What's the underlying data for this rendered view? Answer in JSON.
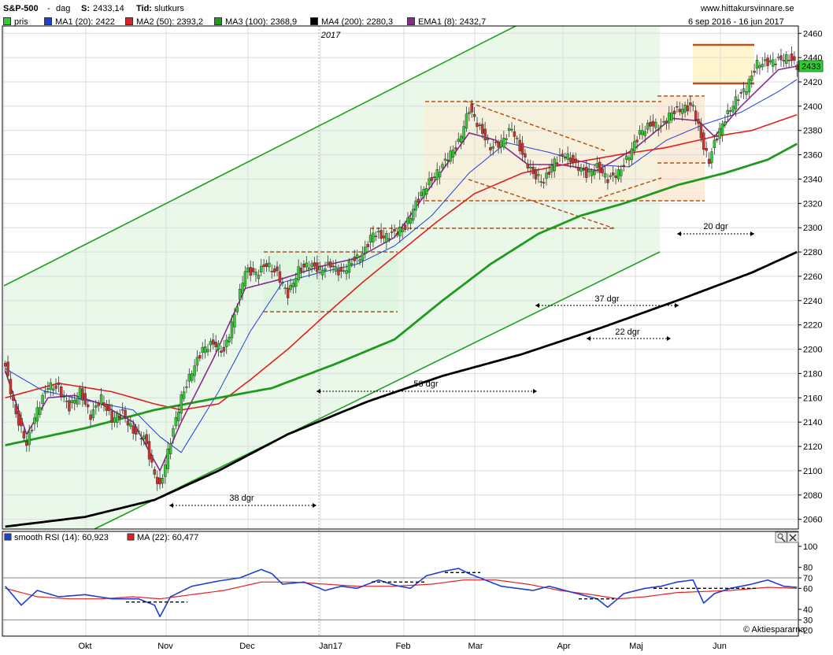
{
  "header": {
    "symbol": "S&P-500",
    "sep": "-",
    "period": "dag",
    "last_label": "S:",
    "last_value": "2433,14",
    "type_label": "Tid:",
    "type_value": "slutkurs",
    "website": "www.hittakursvinnare.se",
    "date_range": "6 sep 2016 - 16 jun 2017"
  },
  "legend": [
    {
      "label": "pris",
      "color": "#33cc33"
    },
    {
      "label": "MA1 (20): 2422",
      "color": "#1f3fd6"
    },
    {
      "label": "MA2 (50): 2393,2",
      "color": "#e02020"
    },
    {
      "label": "MA3 (100): 2368,9",
      "color": "#1f9a1f"
    },
    {
      "label": "MA4 (200): 2280,3",
      "color": "#000000"
    },
    {
      "label": "EMA1 (8): 2432,7",
      "color": "#8a2a8a"
    }
  ],
  "year_label": "2017",
  "price_tag": "2433",
  "annotations": [
    {
      "text": "38 dgr"
    },
    {
      "text": "58 dgr"
    },
    {
      "text": "37 dgr"
    },
    {
      "text": "22 dgr"
    },
    {
      "text": "20 dgr"
    }
  ],
  "rsi_legend": [
    {
      "label": "smooth RSI (14): 60,923",
      "color": "#1f3fd6"
    },
    {
      "label": "MA (22): 60,477",
      "color": "#e02020"
    }
  ],
  "copyright": "© Aktiespararna",
  "icons": [
    "magnifier-icon",
    "close-icon"
  ],
  "chart_data": [
    {
      "type": "candlestick",
      "ylim": [
        2052,
        2466
      ],
      "yticks": [
        2060,
        2080,
        2100,
        2120,
        2140,
        2160,
        2180,
        2200,
        2220,
        2240,
        2260,
        2280,
        2300,
        2320,
        2340,
        2360,
        2380,
        2400,
        2420,
        2440,
        2460
      ],
      "ytick_labels": [
        "2060",
        "2080",
        "2100",
        "2120",
        "2140",
        "2160",
        "2180",
        "2200",
        "2220",
        "2240",
        "2260",
        "2280",
        "2300",
        "2320",
        "2340",
        "2360",
        "2380",
        "2400",
        "2420",
        "2440",
        "2460"
      ],
      "xtick_labels": [
        "Okt",
        "Nov",
        "Dec",
        "Jan17",
        "Feb",
        "Mar",
        "Apr",
        "Maj",
        "Jun"
      ],
      "close_keypoints": [
        [
          0,
          2186
        ],
        [
          4,
          2146
        ],
        [
          8,
          2122
        ],
        [
          12,
          2150
        ],
        [
          16,
          2170
        ],
        [
          20,
          2168
        ],
        [
          24,
          2152
        ],
        [
          28,
          2165
        ],
        [
          32,
          2145
        ],
        [
          36,
          2160
        ],
        [
          40,
          2142
        ],
        [
          44,
          2148
        ],
        [
          48,
          2132
        ],
        [
          52,
          2128
        ],
        [
          56,
          2097
        ],
        [
          58,
          2086
        ],
        [
          62,
          2125
        ],
        [
          66,
          2160
        ],
        [
          70,
          2182
        ],
        [
          74,
          2200
        ],
        [
          78,
          2205
        ],
        [
          82,
          2198
        ],
        [
          86,
          2228
        ],
        [
          90,
          2265
        ],
        [
          94,
          2262
        ],
        [
          98,
          2270
        ],
        [
          102,
          2262
        ],
        [
          106,
          2245
        ],
        [
          110,
          2265
        ],
        [
          114,
          2270
        ],
        [
          118,
          2265
        ],
        [
          122,
          2270
        ],
        [
          126,
          2262
        ],
        [
          130,
          2272
        ],
        [
          134,
          2278
        ],
        [
          138,
          2296
        ],
        [
          142,
          2292
        ],
        [
          146,
          2296
        ],
        [
          150,
          2300
        ],
        [
          154,
          2320
        ],
        [
          158,
          2335
        ],
        [
          162,
          2345
        ],
        [
          166,
          2358
        ],
        [
          170,
          2370
        ],
        [
          174,
          2398
        ],
        [
          178,
          2382
        ],
        [
          182,
          2366
        ],
        [
          186,
          2370
        ],
        [
          190,
          2382
        ],
        [
          194,
          2360
        ],
        [
          198,
          2344
        ],
        [
          202,
          2338
        ],
        [
          206,
          2355
        ],
        [
          210,
          2360
        ],
        [
          214,
          2352
        ],
        [
          218,
          2344
        ],
        [
          222,
          2350
        ],
        [
          226,
          2340
        ],
        [
          230,
          2345
        ],
        [
          234,
          2360
        ],
        [
          238,
          2378
        ],
        [
          242,
          2385
        ],
        [
          246,
          2383
        ],
        [
          250,
          2395
        ],
        [
          254,
          2398
        ],
        [
          258,
          2400
        ],
        [
          262,
          2366
        ],
        [
          264,
          2355
        ],
        [
          266,
          2370
        ],
        [
          270,
          2390
        ],
        [
          274,
          2405
        ],
        [
          278,
          2415
        ],
        [
          282,
          2435
        ],
        [
          286,
          2436
        ],
        [
          290,
          2438
        ],
        [
          294,
          2440
        ],
        [
          297,
          2433
        ]
      ],
      "series": [
        {
          "name": "MA1 (20)",
          "color": "#1f3fd6",
          "keypoints": [
            [
              0,
              2184
            ],
            [
              14,
              2166
            ],
            [
              30,
              2158
            ],
            [
              48,
              2150
            ],
            [
              58,
              2128
            ],
            [
              66,
              2115
            ],
            [
              80,
              2165
            ],
            [
              92,
              2215
            ],
            [
              104,
              2255
            ],
            [
              118,
              2263
            ],
            [
              132,
              2270
            ],
            [
              146,
              2285
            ],
            [
              160,
              2310
            ],
            [
              174,
              2345
            ],
            [
              188,
              2370
            ],
            [
              204,
              2362
            ],
            [
              220,
              2352
            ],
            [
              234,
              2350
            ],
            [
              248,
              2372
            ],
            [
              262,
              2385
            ],
            [
              276,
              2395
            ],
            [
              290,
              2412
            ],
            [
              297,
              2422
            ]
          ]
        },
        {
          "name": "MA2 (50)",
          "color": "#e02020",
          "keypoints": [
            [
              0,
              2160
            ],
            [
              20,
              2172
            ],
            [
              40,
              2165
            ],
            [
              56,
              2155
            ],
            [
              66,
              2150
            ],
            [
              80,
              2155
            ],
            [
              92,
              2175
            ],
            [
              106,
              2200
            ],
            [
              120,
              2228
            ],
            [
              134,
              2255
            ],
            [
              148,
              2280
            ],
            [
              162,
              2305
            ],
            [
              176,
              2328
            ],
            [
              194,
              2345
            ],
            [
              212,
              2353
            ],
            [
              230,
              2360
            ],
            [
              248,
              2366
            ],
            [
              266,
              2375
            ],
            [
              280,
              2380
            ],
            [
              297,
              2393
            ]
          ]
        },
        {
          "name": "MA3 (100)",
          "color": "#1f9a1f",
          "keypoints": [
            [
              0,
              2121
            ],
            [
              30,
              2135
            ],
            [
              56,
              2150
            ],
            [
              80,
              2160
            ],
            [
              100,
              2168
            ],
            [
              124,
              2188
            ],
            [
              146,
              2208
            ],
            [
              164,
              2240
            ],
            [
              182,
              2270
            ],
            [
              200,
              2295
            ],
            [
              216,
              2310
            ],
            [
              232,
              2320
            ],
            [
              252,
              2335
            ],
            [
              270,
              2345
            ],
            [
              286,
              2356
            ],
            [
              297,
              2369
            ]
          ]
        },
        {
          "name": "MA4 (200)",
          "color": "#000000",
          "keypoints": [
            [
              0,
              2054
            ],
            [
              30,
              2062
            ],
            [
              56,
              2076
            ],
            [
              80,
              2100
            ],
            [
              106,
              2130
            ],
            [
              136,
              2157
            ],
            [
              164,
              2178
            ],
            [
              194,
              2196
            ],
            [
              224,
              2218
            ],
            [
              252,
              2240
            ],
            [
              280,
              2263
            ],
            [
              297,
              2280
            ]
          ]
        },
        {
          "name": "EMA1 (8)",
          "color": "#8a2a8a",
          "keypoints": [
            [
              0,
              2182
            ],
            [
              8,
              2130
            ],
            [
              16,
              2160
            ],
            [
              26,
              2162
            ],
            [
              36,
              2155
            ],
            [
              48,
              2140
            ],
            [
              58,
              2100
            ],
            [
              66,
              2140
            ],
            [
              78,
              2192
            ],
            [
              90,
              2250
            ],
            [
              104,
              2258
            ],
            [
              118,
              2268
            ],
            [
              132,
              2275
            ],
            [
              146,
              2292
            ],
            [
              160,
              2335
            ],
            [
              174,
              2378
            ],
            [
              184,
              2372
            ],
            [
              196,
              2352
            ],
            [
              208,
              2352
            ],
            [
              222,
              2347
            ],
            [
              236,
              2365
            ],
            [
              250,
              2390
            ],
            [
              260,
              2388
            ],
            [
              266,
              2375
            ],
            [
              276,
              2400
            ],
            [
              290,
              2430
            ],
            [
              297,
              2433
            ]
          ]
        }
      ]
    },
    {
      "type": "line",
      "ylim": [
        16,
        103
      ],
      "yticks": [
        20,
        30,
        40,
        60,
        70,
        80,
        100
      ],
      "ytick_labels": [
        "20",
        "30",
        "40",
        "60",
        "70",
        "80",
        "100"
      ],
      "reference_lines": [
        30,
        70
      ],
      "series": [
        {
          "name": "smooth RSI (14)",
          "color": "#1f3fd6",
          "keypoints": [
            [
              0,
              62
            ],
            [
              6,
              44
            ],
            [
              12,
              58
            ],
            [
              20,
              52
            ],
            [
              30,
              54
            ],
            [
              40,
              50
            ],
            [
              50,
              50
            ],
            [
              56,
              44
            ],
            [
              58,
              33
            ],
            [
              62,
              52
            ],
            [
              70,
              62
            ],
            [
              80,
              67
            ],
            [
              88,
              70
            ],
            [
              96,
              78
            ],
            [
              100,
              74
            ],
            [
              104,
              64
            ],
            [
              112,
              66
            ],
            [
              120,
              58
            ],
            [
              126,
              62
            ],
            [
              132,
              60
            ],
            [
              140,
              68
            ],
            [
              146,
              63
            ],
            [
              152,
              60
            ],
            [
              158,
              72
            ],
            [
              164,
              76
            ],
            [
              170,
              79
            ],
            [
              174,
              74
            ],
            [
              180,
              68
            ],
            [
              186,
              62
            ],
            [
              192,
              60
            ],
            [
              198,
              58
            ],
            [
              204,
              62
            ],
            [
              210,
              58
            ],
            [
              216,
              54
            ],
            [
              222,
              50
            ],
            [
              226,
              42
            ],
            [
              232,
              55
            ],
            [
              240,
              60
            ],
            [
              246,
              62
            ],
            [
              252,
              66
            ],
            [
              258,
              68
            ],
            [
              262,
              46
            ],
            [
              266,
              55
            ],
            [
              272,
              60
            ],
            [
              280,
              64
            ],
            [
              286,
              68
            ],
            [
              292,
              62
            ],
            [
              297,
              61
            ]
          ]
        },
        {
          "name": "MA (22)",
          "color": "#e02020",
          "keypoints": [
            [
              0,
              60
            ],
            [
              12,
              52
            ],
            [
              24,
              50
            ],
            [
              36,
              50
            ],
            [
              48,
              52
            ],
            [
              58,
              50
            ],
            [
              70,
              54
            ],
            [
              82,
              58
            ],
            [
              96,
              66
            ],
            [
              108,
              66
            ],
            [
              120,
              64
            ],
            [
              132,
              62
            ],
            [
              146,
              62
            ],
            [
              160,
              64
            ],
            [
              172,
              68
            ],
            [
              184,
              68
            ],
            [
              196,
              64
            ],
            [
              208,
              58
            ],
            [
              220,
              54
            ],
            [
              230,
              50
            ],
            [
              240,
              52
            ],
            [
              252,
              56
            ],
            [
              262,
              57
            ],
            [
              272,
              58
            ],
            [
              286,
              61
            ],
            [
              297,
              60
            ]
          ]
        }
      ]
    }
  ]
}
